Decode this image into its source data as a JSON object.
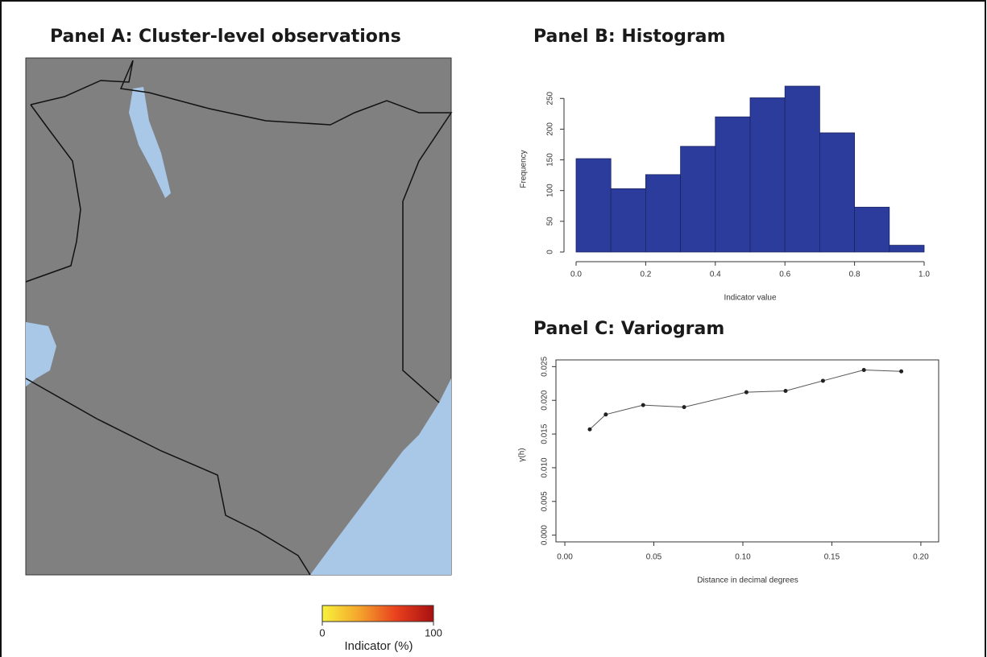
{
  "chart_data": [
    {
      "type": "map",
      "title": "Panel A: Cluster-level observations",
      "colorbar_label": "Indicator (%)",
      "colorbar_ticks": [
        0,
        100
      ],
      "colorbar_colors": [
        "#f8f23c",
        "#f4a42c",
        "#e8401e",
        "#a81010"
      ]
    },
    {
      "type": "histogram",
      "title": "Panel B: Histogram",
      "x_label": "Indicator value",
      "y_label": "Frequency",
      "color": "#2c3c9c",
      "bins": [
        0,
        0.1,
        0.2,
        0.3,
        0.4,
        0.5,
        0.6,
        0.7,
        0.8,
        0.9,
        1.0
      ],
      "values": [
        152,
        103,
        126,
        172,
        220,
        251,
        270,
        194,
        73,
        11
      ],
      "xlim": [
        0,
        1
      ],
      "ylim": [
        0,
        270
      ],
      "xticks": [
        {
          "value": 0,
          "label": "0.0"
        },
        0.2,
        0.4,
        0.6,
        0.8,
        {
          "value": 1,
          "label": "1.0"
        }
      ],
      "yticks": [
        0,
        50,
        100,
        150,
        200,
        250
      ]
    },
    {
      "type": "line",
      "title": "Panel C: Variogram",
      "x_label": "Distance in decimal degrees",
      "y_label": "γ(h)",
      "color": "#222222",
      "x": [
        0.014,
        0.023,
        0.044,
        0.067,
        0.102,
        0.124,
        0.145,
        0.168,
        0.189
      ],
      "values": [
        0.0157,
        0.0179,
        0.0193,
        0.019,
        0.0212,
        0.0214,
        0.0229,
        0.0245,
        0.0243
      ],
      "xlim": [
        -0.005,
        0.21
      ],
      "ylim": [
        -0.001,
        0.026
      ],
      "xticks": [
        {
          "value": 0,
          "label": "0.00"
        },
        0.05,
        {
          "value": 0.1,
          "label": "0.10"
        },
        0.15,
        {
          "value": 0.2,
          "label": "0.20"
        }
      ],
      "yticks": [
        {
          "value": 0,
          "label": "0.000"
        },
        0.005,
        {
          "value": 0.01,
          "label": "0.010"
        },
        0.015,
        {
          "value": 0.02,
          "label": "0.020"
        },
        0.025
      ]
    }
  ]
}
